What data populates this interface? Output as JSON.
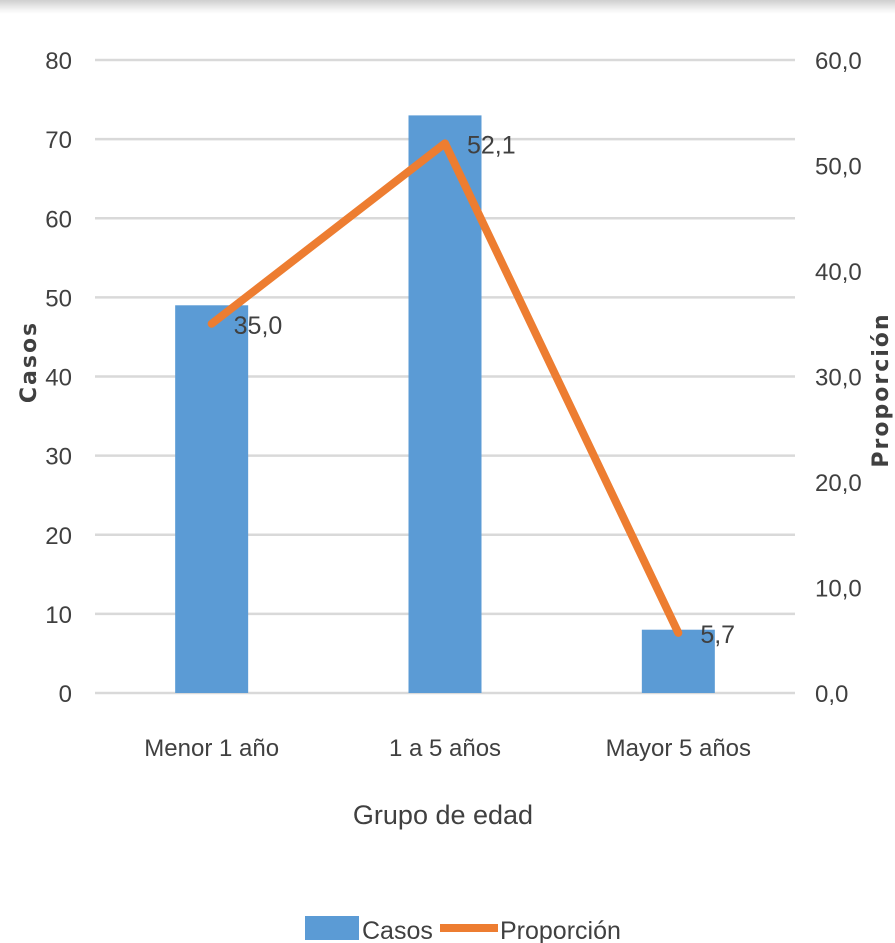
{
  "chart_data": {
    "type": "bar",
    "categories": [
      "Menor 1 año",
      "1 a 5 años",
      "Mayor 5  años"
    ],
    "series": [
      {
        "name": "Casos",
        "type": "bar",
        "axis": "left",
        "values": [
          49,
          73,
          8
        ]
      },
      {
        "name": "Proporción",
        "type": "line",
        "axis": "right",
        "values": [
          35.0,
          52.1,
          5.7
        ]
      }
    ],
    "data_labels": [
      "35,0",
      "52,1",
      "5,7"
    ],
    "xlabel": "Grupo de edad",
    "ylabel": "Casos",
    "y2label": "Proporción",
    "ylim": [
      0,
      80
    ],
    "y2lim": [
      0,
      60
    ],
    "yticks": [
      "0",
      "10",
      "20",
      "30",
      "40",
      "50",
      "60",
      "70",
      "80"
    ],
    "y2ticks": [
      "0,0",
      "10,0",
      "20,0",
      "30,0",
      "40,0",
      "50,0",
      "60,0"
    ],
    "grid": true,
    "legend": {
      "position": "bottom",
      "entries": [
        "Casos",
        "Proporción"
      ]
    },
    "colors": {
      "bar": "#5B9BD5",
      "line": "#ED7D31",
      "grid": "#D9D9D9",
      "text": "#404040"
    }
  }
}
